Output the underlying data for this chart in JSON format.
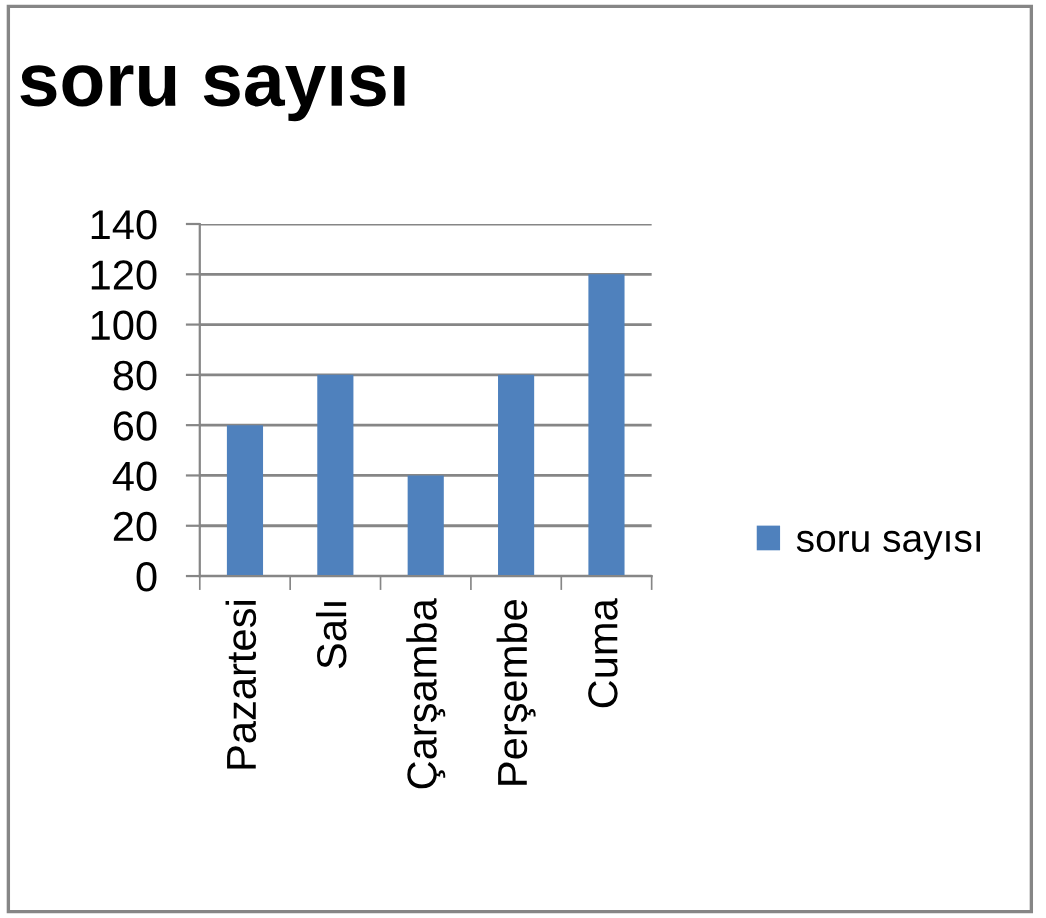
{
  "chart_data": {
    "type": "bar",
    "title": "soru sayısı",
    "categories": [
      "Pazartesi",
      "Salı",
      "Çarşamba",
      "Perşembe",
      "Cuma"
    ],
    "series": [
      {
        "name": "soru sayısı",
        "color": "#4f81bd",
        "values": [
          60,
          80,
          40,
          80,
          120
        ]
      }
    ],
    "ylim": [
      0,
      140
    ],
    "yticks": [
      0,
      20,
      40,
      60,
      80,
      100,
      120,
      140
    ],
    "grid": "y",
    "legend": "right"
  }
}
